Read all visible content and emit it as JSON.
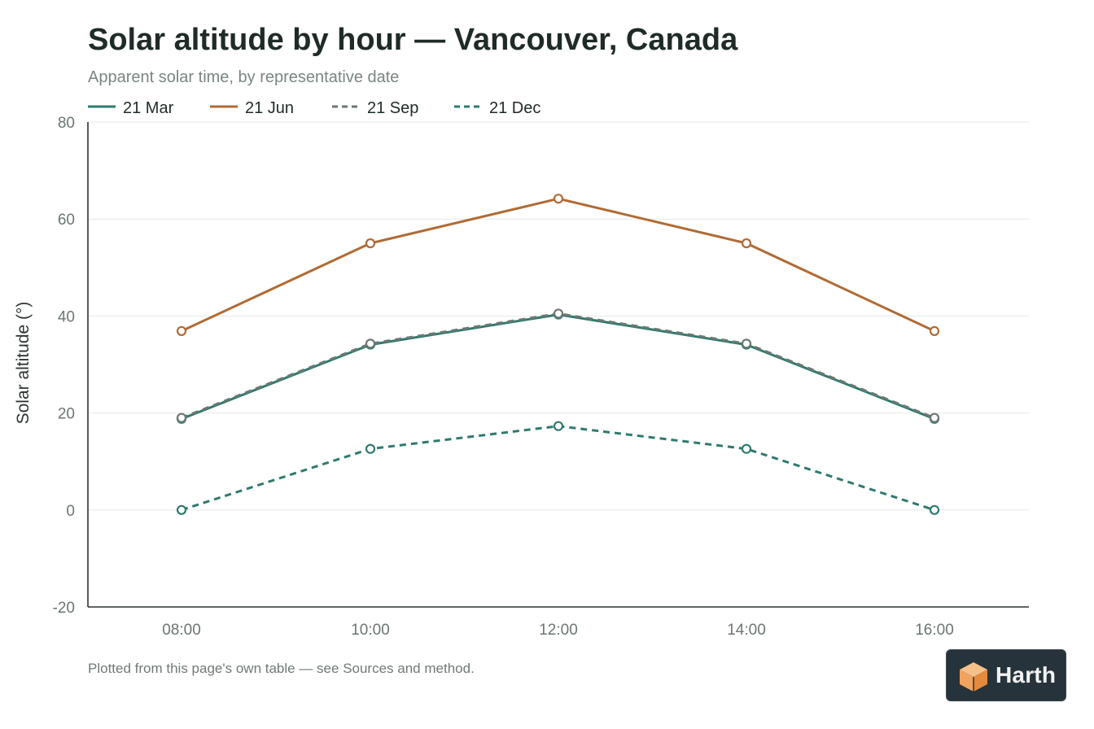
{
  "chart_data": {
    "type": "line",
    "title": "Solar altitude by hour — Vancouver, Canada",
    "subtitle": "Apparent solar time, by representative date",
    "xlabel": "",
    "ylabel": "Solar altitude (°)",
    "categories": [
      "08:00",
      "10:00",
      "12:00",
      "14:00",
      "16:00"
    ],
    "ylim": [
      -20,
      80
    ],
    "yticks": [
      "-20",
      "0",
      "20",
      "40",
      "60",
      "80"
    ],
    "grid": "horizontal",
    "legend_position": "top-left",
    "series": [
      {
        "name": "21 Mar",
        "values": [
          18.8,
          34.1,
          40.3,
          34.1,
          18.8
        ],
        "color": "#2e7a6e",
        "dashed": false
      },
      {
        "name": "21 Jun",
        "values": [
          36.9,
          55.0,
          64.2,
          55.0,
          36.9
        ],
        "color": "#b06b35",
        "dashed": false
      },
      {
        "name": "21 Sep",
        "values": [
          19.0,
          34.3,
          40.5,
          34.3,
          19.0
        ],
        "color": "#6c7773",
        "dashed": true
      },
      {
        "name": "21 Dec",
        "values": [
          0.0,
          12.6,
          17.3,
          12.6,
          0.0
        ],
        "color": "#2e7a6e",
        "dashed": true
      }
    ]
  },
  "footnote": "Plotted from this page's own table — see Sources and method.",
  "logo": {
    "text": "Harth",
    "icon": "box-icon",
    "background": "#26333b",
    "accent": "#f0a35e"
  }
}
